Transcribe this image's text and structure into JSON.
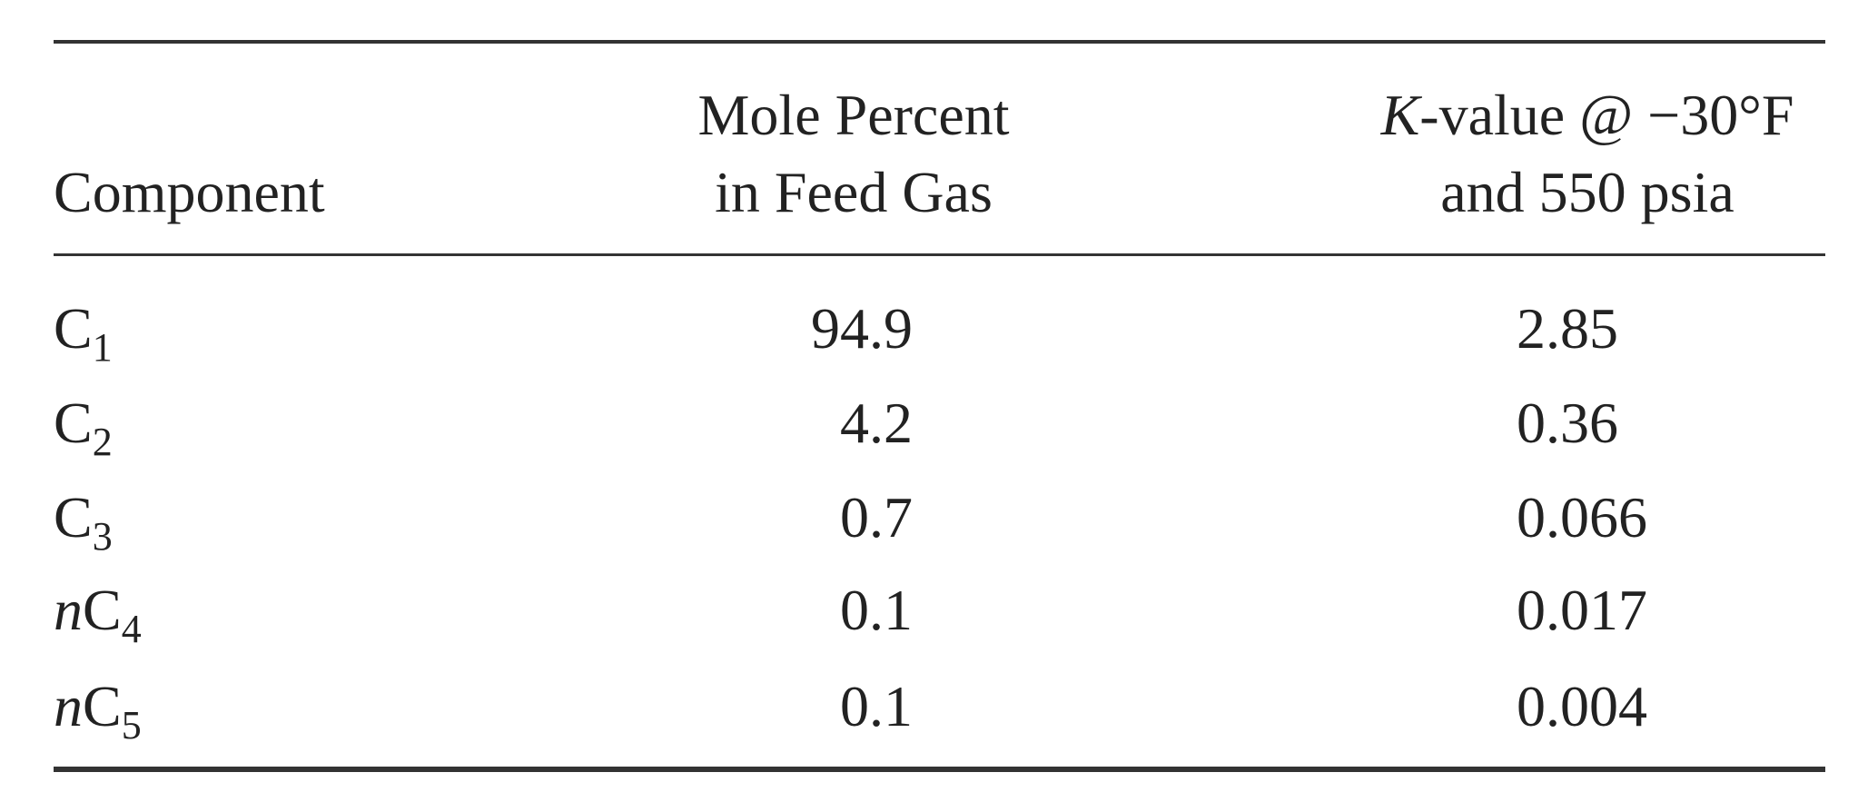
{
  "table": {
    "header": [
      {
        "lines": [
          "Component"
        ]
      },
      {
        "lines": [
          "Mole Percent",
          "in Feed Gas"
        ]
      },
      {
        "lines": [
          {
            "italic": "K",
            "rest": "-value @ −30°F"
          },
          "and 550 psia"
        ]
      }
    ],
    "rows": [
      {
        "component": {
          "base": "C",
          "sub": "1"
        },
        "mole_percent": 94.9,
        "k_value": 2.85
      },
      {
        "component": {
          "base": "C",
          "sub": "2"
        },
        "mole_percent": 4.2,
        "k_value": 0.36
      },
      {
        "component": {
          "base": "C",
          "sub": "3"
        },
        "mole_percent": 0.7,
        "k_value": 0.066
      },
      {
        "component": {
          "prefix": "n",
          "base": "C",
          "sub": "4"
        },
        "mole_percent": 0.1,
        "k_value": 0.017
      },
      {
        "component": {
          "prefix": "n",
          "base": "C",
          "sub": "5"
        },
        "mole_percent": 0.1,
        "k_value": 0.004
      }
    ]
  }
}
